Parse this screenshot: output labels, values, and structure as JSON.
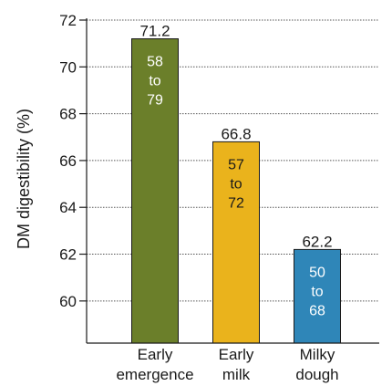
{
  "chart_data": {
    "type": "bar",
    "categories": [
      [
        "Early",
        "emergence"
      ],
      [
        "Early",
        "milk"
      ],
      [
        "Milky",
        "dough"
      ]
    ],
    "values": [
      71.2,
      66.8,
      62.2
    ],
    "ranges": [
      [
        "58",
        "to",
        "79"
      ],
      [
        "57",
        "to",
        "72"
      ],
      [
        "50",
        "to",
        "68"
      ]
    ],
    "bar_colors": [
      "#6b7f2a",
      "#eab31c",
      "#2f86b8"
    ],
    "range_text_colors": [
      "#ffffff",
      "#1a1a1a",
      "#ffffff"
    ],
    "ylabel": "DM digestibility (%)",
    "ylim": [
      58.2,
      72
    ],
    "yticks": [
      60,
      62,
      64,
      66,
      68,
      70,
      72
    ],
    "grid": true
  }
}
